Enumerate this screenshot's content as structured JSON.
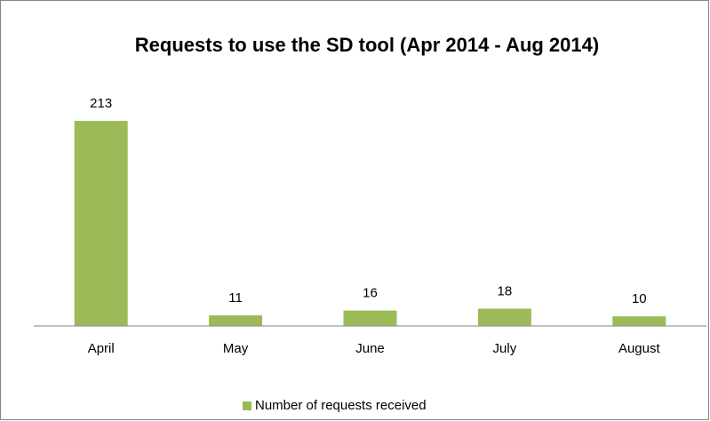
{
  "chart_data": {
    "type": "bar",
    "title": "Requests to use the SD tool (Apr 2014 - Aug 2014)",
    "categories": [
      "April",
      "May",
      "June",
      "July",
      "August"
    ],
    "series": [
      {
        "name": "Number of requests received",
        "color": "#9bbb59",
        "values": [
          213,
          11,
          16,
          18,
          10
        ]
      }
    ],
    "ylim": [
      0,
      250
    ],
    "legend": "bottom"
  }
}
